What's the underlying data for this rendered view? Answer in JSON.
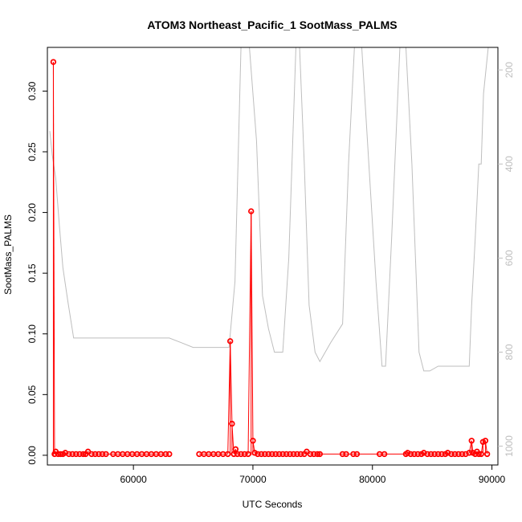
{
  "chart_data": {
    "type": "line",
    "title": "ATOM3 Northeast_Pacific_1 SootMass_PALMS",
    "xlabel": "UTC Seconds",
    "ylabel": "SootMass_PALMS",
    "xlim": [
      52800,
      90500
    ],
    "ylim": [
      -0.008,
      0.336
    ],
    "xticks": [
      60000,
      70000,
      80000,
      90000
    ],
    "xtick_labels": [
      "60000",
      "70000",
      "80000",
      "90000"
    ],
    "yticks": [
      0,
      0.05,
      0.1,
      0.15,
      0.2,
      0.25,
      0.3
    ],
    "ytick_labels": [
      "0.00",
      "0.05",
      "0.10",
      "0.15",
      "0.20",
      "0.25",
      "0.30"
    ],
    "y2lim": [
      1040,
      152
    ],
    "y2ticks": [
      200,
      400,
      600,
      800,
      1000
    ],
    "y2tick_labels": [
      "200",
      "400",
      "600",
      "800",
      "1000"
    ],
    "colors": {
      "soot": "#ff0000",
      "pressure": "#bebebe",
      "axis": "#000000",
      "text": "#000000"
    },
    "series": [
      {
        "color": "#ff0000",
        "points": [
          [
            53300,
            0.324
          ],
          [
            53400,
            0.001
          ],
          [
            53500,
            0.003
          ],
          [
            53700,
            0.001
          ],
          [
            53900,
            0.001
          ],
          [
            54100,
            0.001
          ],
          [
            54300,
            0.002
          ],
          [
            54600,
            0.001
          ],
          [
            54900,
            0.001
          ],
          [
            55200,
            0.001
          ],
          [
            55500,
            0.001
          ],
          [
            55800,
            0.001
          ],
          [
            56000,
            0.001
          ],
          [
            56200,
            0.003
          ],
          [
            56500,
            0.001
          ],
          [
            56800,
            0.001
          ],
          [
            57100,
            0.001
          ],
          [
            57400,
            0.001
          ],
          [
            57700,
            0.001
          ],
          [
            58300,
            0.001
          ],
          [
            58700,
            0.001
          ],
          [
            59100,
            0.001
          ],
          [
            59500,
            0.001
          ],
          [
            59900,
            0.001
          ],
          [
            60300,
            0.001
          ],
          [
            60700,
            0.001
          ],
          [
            61100,
            0.001
          ],
          [
            61500,
            0.001
          ],
          [
            61900,
            0.001
          ],
          [
            62300,
            0.001
          ],
          [
            62700,
            0.001
          ],
          [
            63000,
            0.001
          ],
          [
            65500,
            0.001
          ],
          [
            65900,
            0.001
          ],
          [
            66300,
            0.001
          ],
          [
            66700,
            0.001
          ],
          [
            67100,
            0.001
          ],
          [
            67500,
            0.001
          ],
          [
            67900,
            0.001
          ],
          [
            68100,
            0.094
          ],
          [
            68250,
            0.026
          ],
          [
            68400,
            0.001
          ],
          [
            68550,
            0.005
          ],
          [
            68700,
            0.001
          ],
          [
            69000,
            0.001
          ],
          [
            69300,
            0.001
          ],
          [
            69600,
            0.001
          ],
          [
            69850,
            0.201
          ],
          [
            70000,
            0.012
          ],
          [
            70150,
            0.002
          ],
          [
            70400,
            0.001
          ],
          [
            70700,
            0.001
          ],
          [
            71000,
            0.001
          ],
          [
            71300,
            0.001
          ],
          [
            71600,
            0.001
          ],
          [
            71900,
            0.001
          ],
          [
            72200,
            0.001
          ],
          [
            72500,
            0.001
          ],
          [
            72800,
            0.001
          ],
          [
            73100,
            0.001
          ],
          [
            73400,
            0.001
          ],
          [
            73700,
            0.001
          ],
          [
            74000,
            0.001
          ],
          [
            74300,
            0.001
          ],
          [
            74500,
            0.003
          ],
          [
            74800,
            0.001
          ],
          [
            75100,
            0.001
          ],
          [
            75400,
            0.001
          ],
          [
            75600,
            0.001
          ],
          [
            77500,
            0.001
          ],
          [
            77800,
            0.001
          ],
          [
            78400,
            0.001
          ],
          [
            78700,
            0.001
          ],
          [
            80600,
            0.001
          ],
          [
            81000,
            0.001
          ],
          [
            82800,
            0.001
          ],
          [
            82950,
            0.002
          ],
          [
            83200,
            0.001
          ],
          [
            83500,
            0.001
          ],
          [
            83800,
            0.001
          ],
          [
            84100,
            0.001
          ],
          [
            84300,
            0.002
          ],
          [
            84600,
            0.001
          ],
          [
            84900,
            0.001
          ],
          [
            85200,
            0.001
          ],
          [
            85500,
            0.001
          ],
          [
            85800,
            0.001
          ],
          [
            86100,
            0.001
          ],
          [
            86300,
            0.002
          ],
          [
            86600,
            0.001
          ],
          [
            86900,
            0.001
          ],
          [
            87200,
            0.001
          ],
          [
            87500,
            0.001
          ],
          [
            87800,
            0.001
          ],
          [
            88100,
            0.002
          ],
          [
            88300,
            0.012
          ],
          [
            88400,
            0.002
          ],
          [
            88600,
            0.001
          ],
          [
            88750,
            0.003
          ],
          [
            88900,
            0.001
          ],
          [
            89100,
            0.001
          ],
          [
            89250,
            0.011
          ],
          [
            89450,
            0.012
          ],
          [
            89600,
            0.001
          ]
        ]
      },
      {
        "color": "#bebebe",
        "axis": "right",
        "points": [
          [
            53000,
            330
          ],
          [
            53200,
            380
          ],
          [
            53500,
            430
          ],
          [
            53800,
            530
          ],
          [
            54100,
            620
          ],
          [
            54500,
            690
          ],
          [
            55000,
            770
          ],
          [
            56000,
            770
          ],
          [
            58000,
            770
          ],
          [
            60000,
            770
          ],
          [
            62000,
            770
          ],
          [
            63000,
            770
          ],
          [
            64000,
            780
          ],
          [
            65000,
            790
          ],
          [
            66000,
            790
          ],
          [
            67000,
            790
          ],
          [
            68000,
            790
          ],
          [
            68500,
            650
          ],
          [
            69000,
            150
          ],
          [
            69700,
            150
          ],
          [
            70300,
            350
          ],
          [
            70800,
            680
          ],
          [
            71300,
            750
          ],
          [
            71800,
            800
          ],
          [
            72500,
            800
          ],
          [
            73000,
            600
          ],
          [
            73600,
            150
          ],
          [
            73900,
            150
          ],
          [
            74300,
            400
          ],
          [
            74700,
            700
          ],
          [
            75200,
            800
          ],
          [
            75600,
            820
          ],
          [
            76500,
            780
          ],
          [
            77500,
            740
          ],
          [
            78000,
            400
          ],
          [
            78500,
            150
          ],
          [
            79100,
            150
          ],
          [
            79700,
            400
          ],
          [
            80300,
            650
          ],
          [
            80800,
            830
          ],
          [
            81100,
            830
          ],
          [
            81600,
            560
          ],
          [
            82300,
            150
          ],
          [
            82800,
            150
          ],
          [
            83300,
            400
          ],
          [
            83900,
            800
          ],
          [
            84300,
            840
          ],
          [
            84800,
            840
          ],
          [
            85500,
            830
          ],
          [
            87000,
            830
          ],
          [
            88100,
            830
          ],
          [
            88300,
            700
          ],
          [
            88600,
            560
          ],
          [
            88900,
            400
          ],
          [
            89100,
            400
          ],
          [
            89300,
            250
          ],
          [
            89500,
            200
          ],
          [
            89700,
            150
          ]
        ]
      }
    ]
  }
}
